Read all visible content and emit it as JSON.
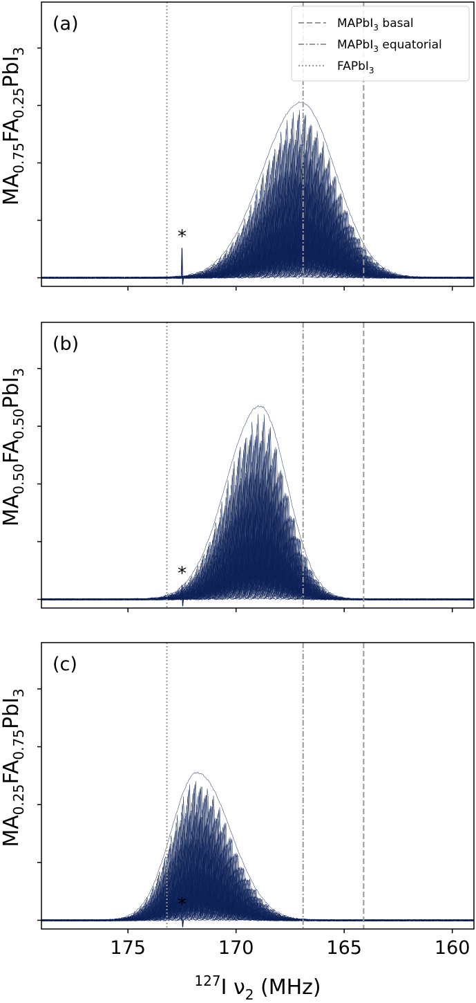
{
  "figure": {
    "xlabel": {
      "sup": "127",
      "main": "I ν",
      "sub": "2",
      "unit": " (MHz)"
    },
    "x_ticks": [
      175,
      170,
      165,
      160
    ],
    "xlim": [
      179,
      159
    ],
    "reference_lines": [
      {
        "name": "MAPbI3 basal",
        "label": "MAPbI",
        "label_sub": "3",
        "label_suffix": " basal",
        "x": 164.1,
        "style": "dashed",
        "color": "#999999"
      },
      {
        "name": "MAPbI3 equatorial",
        "label": "MAPbI",
        "label_sub": "3",
        "label_suffix": " equatorial",
        "x": 166.9,
        "style": "dashdot",
        "color": "#999999"
      },
      {
        "name": "FAPbI3",
        "label": "FAPbI",
        "label_sub": "3",
        "label_suffix": "",
        "x": 173.2,
        "style": "dotted",
        "color": "#999999"
      }
    ],
    "legend_location": "top-right",
    "trace_color": "#0d2157",
    "star_label": "*"
  },
  "chart_data": [
    {
      "type": "line",
      "panel_label": "(a)",
      "ylabel_parts": [
        {
          "t": "MA",
          "s": false
        },
        {
          "t": "0.75",
          "s": true
        },
        {
          "t": "FA",
          "s": false
        },
        {
          "t": "0.25",
          "s": true
        },
        {
          "t": "PbI",
          "s": false
        },
        {
          "t": "3",
          "s": true
        }
      ],
      "peak_center_mhz": 167.0,
      "peak_height": 3.05,
      "peak_sigma_left": 1.8,
      "peak_sigma_right": 1.6,
      "artifact_x_mhz": 172.5,
      "artifact_height": 0.52,
      "ylim": [
        -0.15,
        4.8
      ],
      "y_ticks": [
        0,
        1,
        2,
        3,
        4
      ]
    },
    {
      "type": "line",
      "panel_label": "(b)",
      "ylabel_parts": [
        {
          "t": "MA",
          "s": false
        },
        {
          "t": "0.50",
          "s": true
        },
        {
          "t": "FA",
          "s": false
        },
        {
          "t": "0.50",
          "s": true
        },
        {
          "t": "PbI",
          "s": false
        },
        {
          "t": "3",
          "s": true
        }
      ],
      "peak_center_mhz": 168.9,
      "peak_height": 3.35,
      "peak_sigma_left": 1.55,
      "peak_sigma_right": 1.25,
      "artifact_x_mhz": 172.5,
      "artifact_height": 0.25,
      "ylim": [
        -0.15,
        4.8
      ],
      "y_ticks": [
        0,
        1,
        2,
        3,
        4
      ]
    },
    {
      "type": "line",
      "panel_label": "(c)",
      "ylabel_parts": [
        {
          "t": "MA",
          "s": false
        },
        {
          "t": "0.25",
          "s": true
        },
        {
          "t": "FA",
          "s": false
        },
        {
          "t": "0.75",
          "s": true
        },
        {
          "t": "PbI",
          "s": false
        },
        {
          "t": "3",
          "s": true
        }
      ],
      "peak_center_mhz": 171.8,
      "peak_height": 2.55,
      "peak_sigma_left": 1.2,
      "peak_sigma_right": 1.55,
      "artifact_x_mhz": 172.5,
      "artifact_height": 0.08,
      "ylim": [
        -0.15,
        4.8
      ],
      "y_ticks": [
        0,
        1,
        2,
        3,
        4
      ]
    }
  ]
}
